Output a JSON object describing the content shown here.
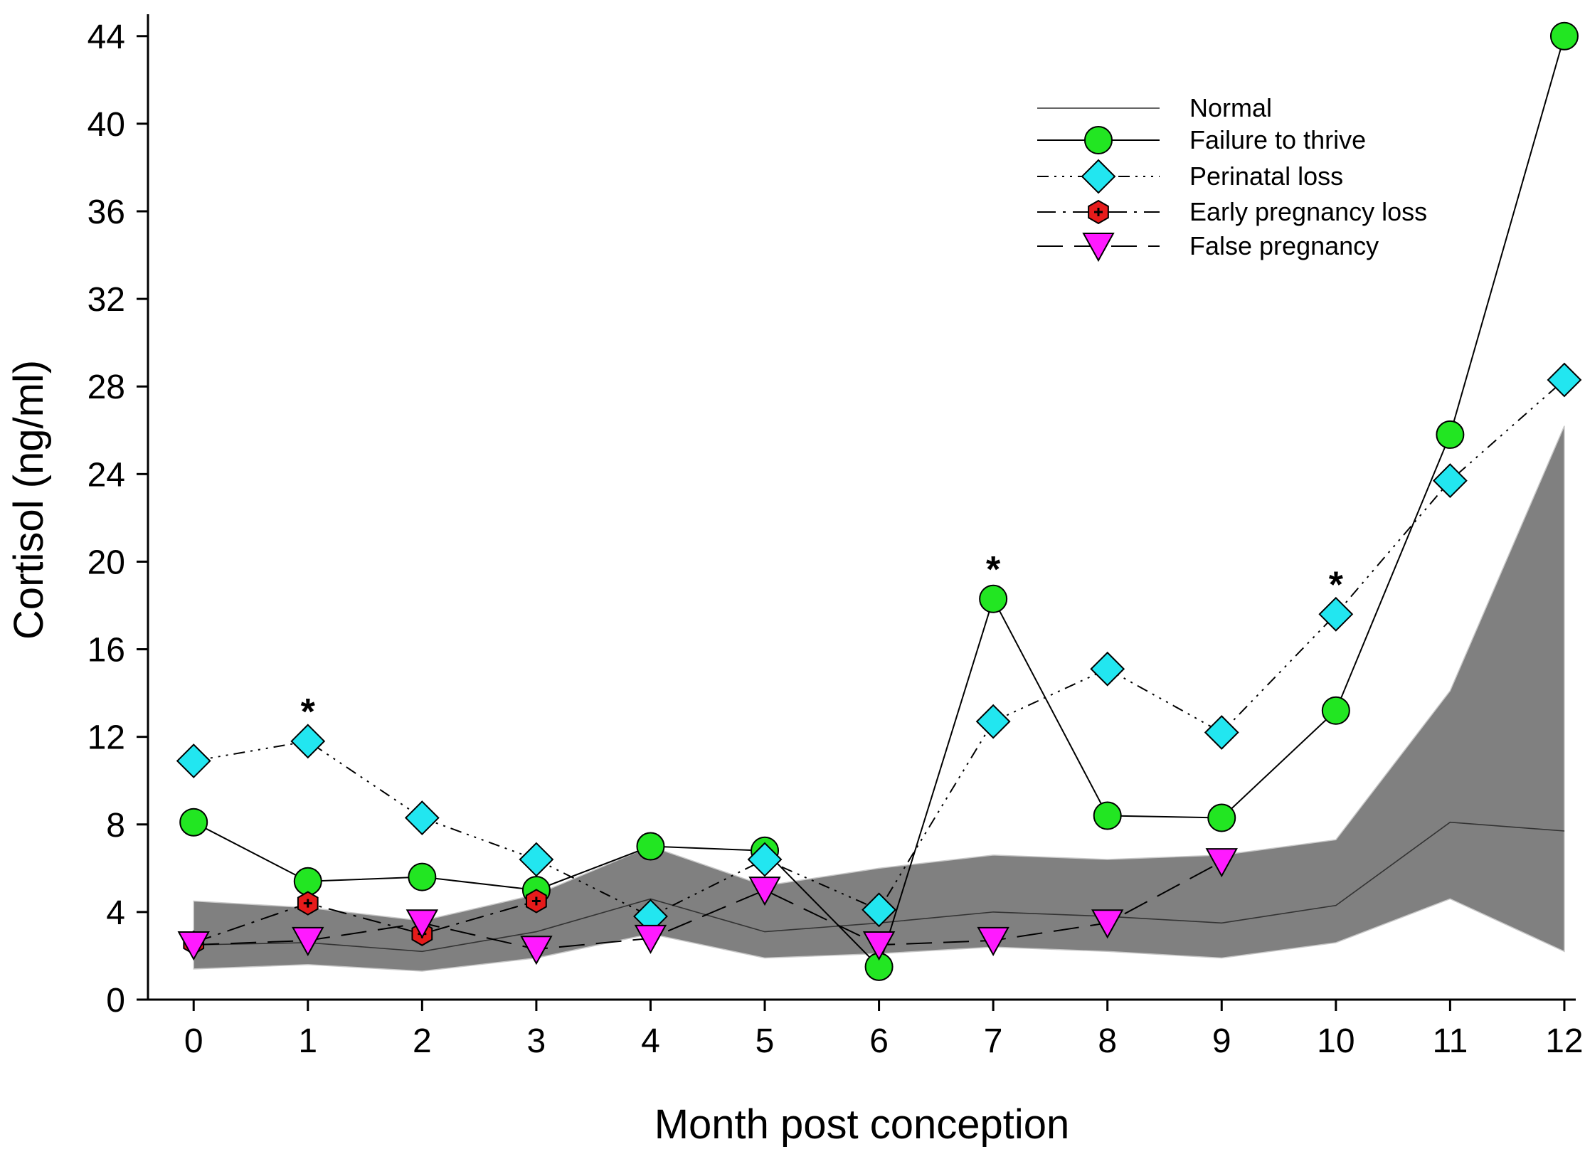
{
  "chart_data": {
    "type": "line",
    "title": "",
    "xlabel": "Month post conception",
    "ylabel": "Cortisol (ng/ml)",
    "x": [
      0,
      1,
      2,
      3,
      4,
      5,
      6,
      7,
      8,
      9,
      10,
      11,
      12
    ],
    "x_tick_labels": [
      "0",
      "1",
      "2",
      "3",
      "4",
      "5",
      "6",
      "7",
      "8",
      "9",
      "10",
      "11",
      "12"
    ],
    "y_ticks": [
      0,
      4,
      8,
      12,
      16,
      20,
      24,
      28,
      32,
      36,
      40,
      44
    ],
    "y_tick_labels": [
      "0",
      "4",
      "8",
      "12",
      "16",
      "20",
      "24",
      "28",
      "32",
      "36",
      "40",
      "44"
    ],
    "xlim": [
      -0.4,
      12.1
    ],
    "ylim": [
      0,
      45
    ],
    "grid": false,
    "legend_position": "top-right",
    "normal_band": {
      "name": "Normal",
      "x": [
        0,
        1,
        2,
        3,
        4,
        5,
        6,
        7,
        8,
        9,
        10,
        11,
        12
      ],
      "mean": [
        2.5,
        2.6,
        2.2,
        3.1,
        4.6,
        3.1,
        3.5,
        4.0,
        3.8,
        3.5,
        4.3,
        8.1,
        7.7
      ],
      "upper": [
        4.5,
        4.2,
        3.6,
        4.8,
        7.0,
        5.2,
        6.0,
        6.6,
        6.4,
        6.6,
        7.3,
        14.1,
        26.2
      ],
      "lower": [
        1.4,
        1.6,
        1.3,
        1.9,
        3.0,
        1.9,
        2.1,
        2.4,
        2.2,
        1.9,
        2.6,
        4.6,
        2.2
      ]
    },
    "series": [
      {
        "name": "Failure to thrive",
        "x": [
          0,
          1,
          2,
          3,
          4,
          5,
          6,
          7,
          8,
          9,
          10,
          11,
          12
        ],
        "values": [
          8.1,
          5.4,
          5.6,
          5.0,
          7.0,
          6.8,
          1.5,
          18.3,
          8.4,
          8.3,
          13.2,
          25.8,
          44.0
        ],
        "marker": "circle",
        "color": "#22e622",
        "dash": ""
      },
      {
        "name": "Perinatal loss",
        "x": [
          0,
          1,
          2,
          3,
          4,
          5,
          6,
          7,
          8,
          9,
          10,
          11,
          12
        ],
        "values": [
          10.9,
          11.8,
          8.3,
          6.4,
          3.8,
          6.4,
          4.1,
          12.7,
          15.1,
          12.2,
          17.6,
          23.7,
          28.3
        ],
        "marker": "diamond",
        "color": "#22e6f0",
        "dash": "16 8 3 8 3 8 3 8"
      },
      {
        "name": "Early pregnancy loss",
        "x": [
          0,
          1,
          2,
          3
        ],
        "values": [
          2.6,
          4.4,
          3.0,
          4.5
        ],
        "marker": "hexagon",
        "color": "#e61b1b",
        "dash": "26 10 4 10"
      },
      {
        "name": "False pregnancy",
        "x": [
          0,
          1,
          2,
          3,
          4,
          5,
          6,
          7,
          8,
          9
        ],
        "values": [
          2.5,
          2.7,
          3.5,
          2.3,
          2.8,
          5.0,
          2.5,
          2.7,
          3.5,
          6.3
        ],
        "marker": "triangle-down",
        "color": "#ff1aff",
        "dash": "36 16"
      }
    ],
    "annotations": [
      {
        "text": "*",
        "x": 1,
        "y": 11.8
      },
      {
        "text": "*",
        "x": 7,
        "y": 18.3
      },
      {
        "text": "*",
        "x": 10,
        "y": 17.6
      }
    ],
    "legend": [
      "Normal",
      "Failure to thrive",
      "Perinatal loss",
      "Early pregnancy loss",
      "False pregnancy"
    ]
  }
}
